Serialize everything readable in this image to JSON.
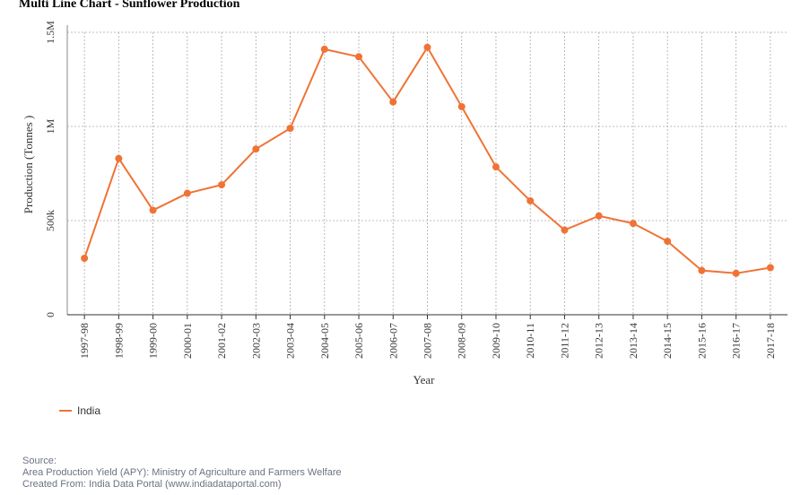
{
  "title": "Multi Line Chart - Sunflower Production",
  "legend_label": "India",
  "source": {
    "heading": "Source:",
    "line1": "Area Production Yield (APY): Ministry of Agriculture and Farmers Welfare",
    "line2": "Created From: India Data Portal (www.indiadataportal.com)"
  },
  "colors": {
    "line": "#f07335",
    "grid": "#aaaaaa",
    "axis": "#333333"
  },
  "chart_data": {
    "type": "line",
    "title": "Multi Line Chart - Sunflower Production",
    "xlabel": "Year",
    "ylabel": "Production (Tonnes )",
    "categories": [
      "1997-98",
      "1998-99",
      "1999-00",
      "2000-01",
      "2001-02",
      "2002-03",
      "2003-04",
      "2004-05",
      "2005-06",
      "2006-07",
      "2007-08",
      "2008-09",
      "2009-10",
      "2010-11",
      "2011-12",
      "2012-13",
      "2013-14",
      "2014-15",
      "2015-16",
      "2016-17",
      "2017-18"
    ],
    "series": [
      {
        "name": "India",
        "color": "#f07335",
        "values": [
          300000,
          830000,
          555000,
          645000,
          690000,
          880000,
          990000,
          1410000,
          1370000,
          1130000,
          1420000,
          1105000,
          785000,
          605000,
          450000,
          525000,
          485000,
          390000,
          235000,
          220000,
          250000
        ]
      }
    ],
    "ylim": [
      0,
      1500000
    ],
    "yticks": [
      0,
      500000,
      1000000,
      1500000
    ],
    "ytick_labels": [
      "0",
      "500k",
      "1M",
      "1.5M"
    ],
    "grid": true,
    "legend_position": "bottom-left"
  }
}
